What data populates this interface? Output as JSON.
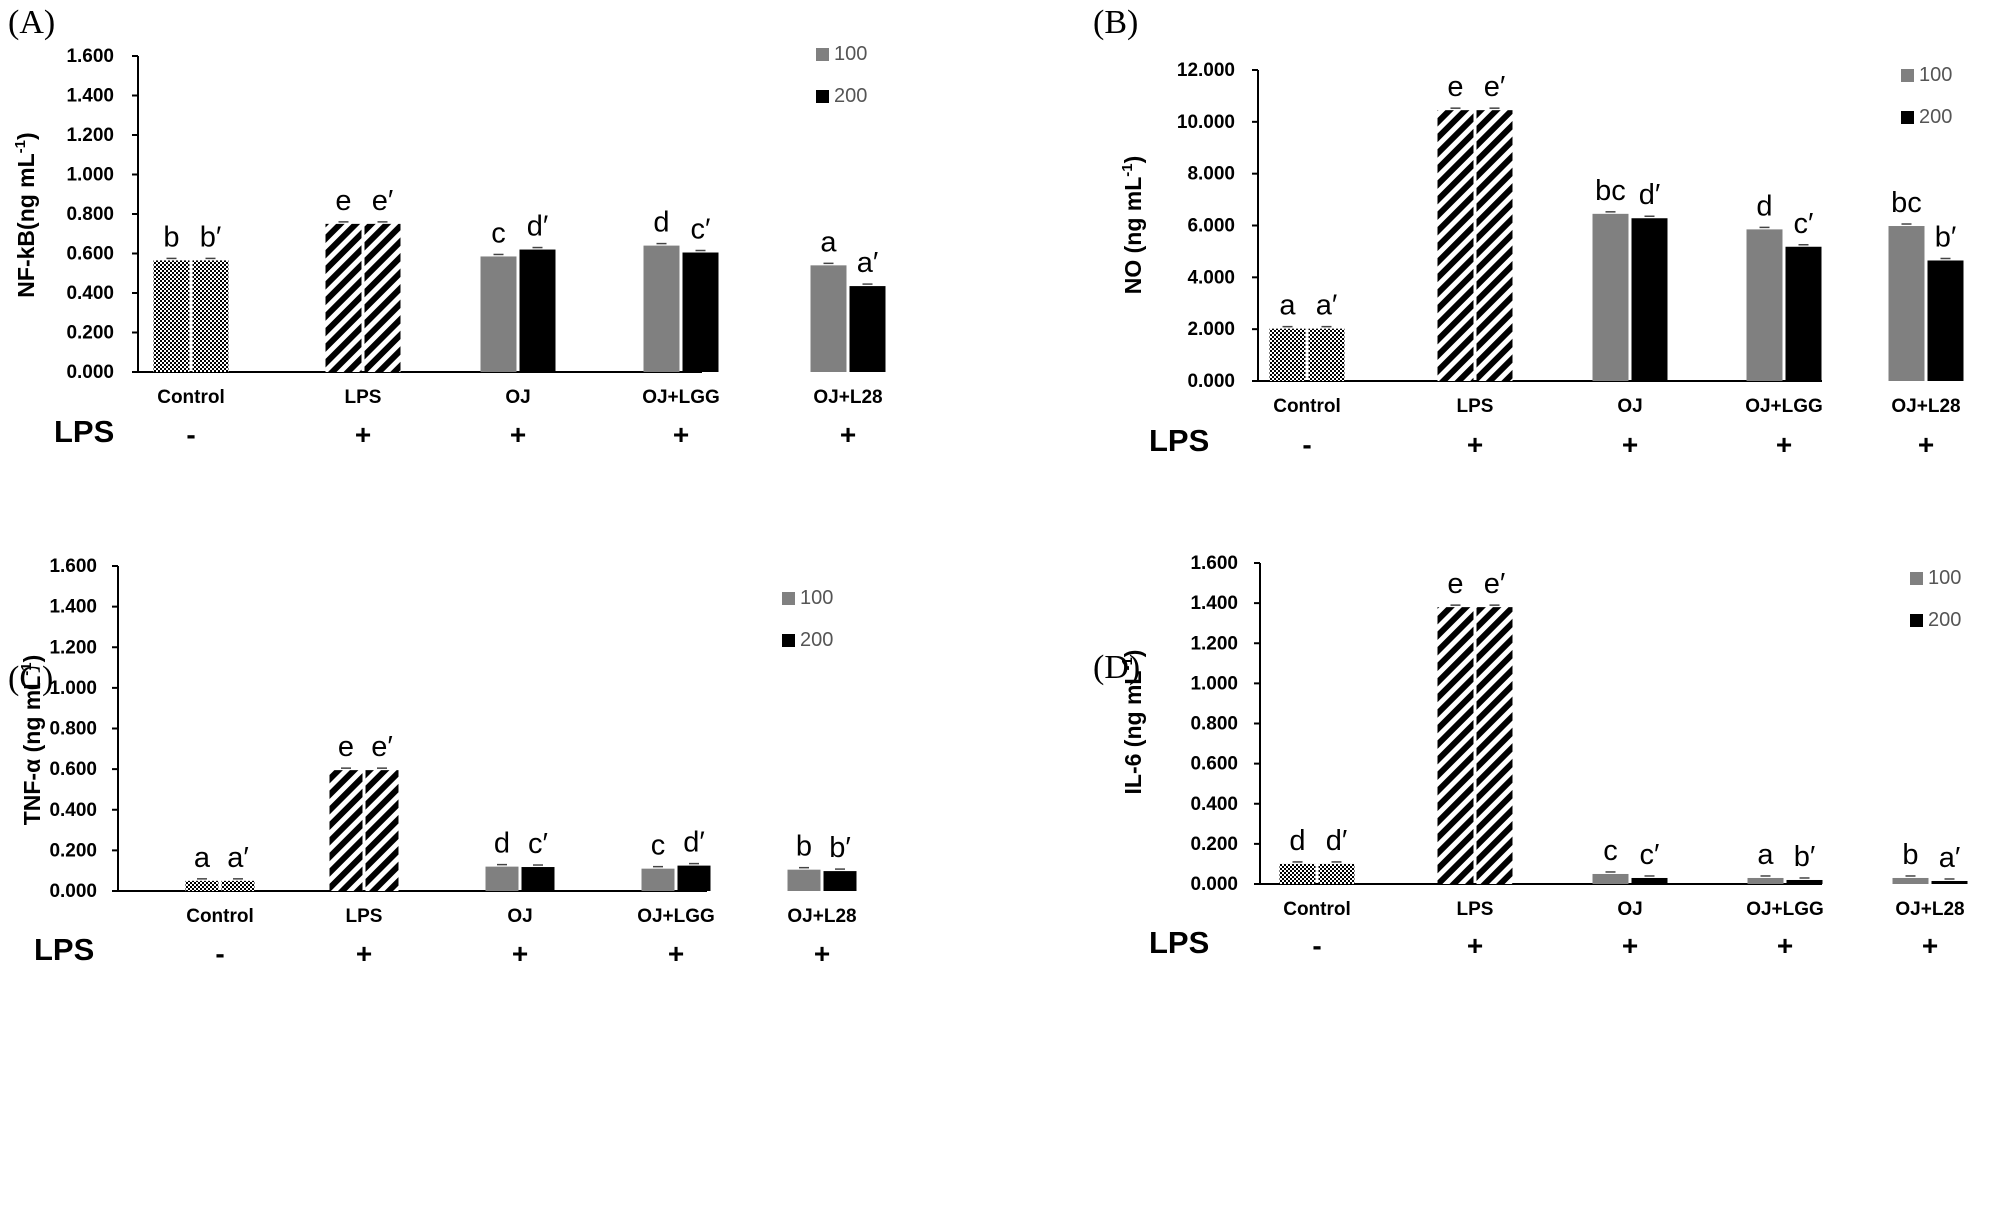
{
  "colors": {
    "s100": "#808080",
    "s200": "#000000",
    "axis": "#000000",
    "text": "#000000"
  },
  "legend": [
    "100",
    "200"
  ],
  "lps_row": {
    "label": "LPS",
    "signs": [
      "-",
      "+",
      "+",
      "+",
      "+"
    ]
  },
  "chart_data": [
    {
      "panel": "(A)",
      "type": "bar",
      "ylabel_main": "NF-kB(ng mL",
      "ylabel_sup": "-1",
      "ylabel_end": ")",
      "ylim": [
        0,
        1.6
      ],
      "yticks": [
        "0.000",
        "0.200",
        "0.400",
        "0.600",
        "0.800",
        "1.000",
        "1.200",
        "1.400",
        "1.600"
      ],
      "categories": [
        "Control",
        "LPS",
        "OJ",
        "OJ+LGG",
        "OJ+L28"
      ],
      "series": [
        {
          "name": "100",
          "values": [
            0.565,
            0.75,
            0.585,
            0.64,
            0.54
          ],
          "letters": [
            "b",
            "e",
            "c",
            "d",
            "a"
          ]
        },
        {
          "name": "200",
          "values": [
            0.565,
            0.75,
            0.62,
            0.605,
            0.435
          ],
          "letters": [
            "b′",
            "e′",
            "d′",
            "c′",
            "a′"
          ]
        }
      ]
    },
    {
      "panel": "(B)",
      "type": "bar",
      "ylabel_main": "NO (ng mL",
      "ylabel_sup": "-1",
      "ylabel_end": ")",
      "ylim": [
        0,
        12
      ],
      "yticks": [
        "0.000",
        "2.000",
        "4.000",
        "6.000",
        "8.000",
        "10.000",
        "12.000"
      ],
      "categories": [
        "Control",
        "LPS",
        "OJ",
        "OJ+LGG",
        "OJ+L28"
      ],
      "series": [
        {
          "name": "100",
          "values": [
            2.02,
            10.45,
            6.45,
            5.85,
            5.98
          ],
          "letters": [
            "a",
            "e",
            "bc",
            "d",
            "bc"
          ]
        },
        {
          "name": "200",
          "values": [
            2.02,
            10.45,
            6.28,
            5.18,
            4.65
          ],
          "letters": [
            "a′",
            "e′",
            "d′",
            "c′",
            "b′"
          ]
        }
      ]
    },
    {
      "panel": "(C)",
      "type": "bar",
      "ylabel_main": "TNF-α (ng mL",
      "ylabel_sup": "-1",
      "ylabel_end": ")",
      "ylim": [
        0,
        1.6
      ],
      "yticks": [
        "0.000",
        "0.200",
        "0.400",
        "0.600",
        "0.800",
        "1.000",
        "1.200",
        "1.400",
        "1.600"
      ],
      "categories": [
        "Control",
        "LPS",
        "OJ",
        "OJ+LGG",
        "OJ+L28"
      ],
      "series": [
        {
          "name": "100",
          "values": [
            0.05,
            0.595,
            0.12,
            0.11,
            0.105
          ],
          "letters": [
            "a",
            "e",
            "d",
            "c",
            "b"
          ]
        },
        {
          "name": "200",
          "values": [
            0.05,
            0.595,
            0.118,
            0.125,
            0.098
          ],
          "letters": [
            "a′",
            "e′",
            "c′",
            "d′",
            "b′"
          ]
        }
      ]
    },
    {
      "panel": "(D)",
      "type": "bar",
      "ylabel_main": "IL-6 (ng mL",
      "ylabel_sup": "-1",
      "ylabel_end": ")",
      "ylim": [
        0,
        1.6
      ],
      "yticks": [
        "0.000",
        "0.200",
        "0.400",
        "0.600",
        "0.800",
        "1.000",
        "1.200",
        "1.400",
        "1.600"
      ],
      "categories": [
        "Control",
        "LPS",
        "OJ",
        "OJ+LGG",
        "OJ+L28"
      ],
      "series": [
        {
          "name": "100",
          "values": [
            0.1,
            1.38,
            0.05,
            0.03,
            0.03
          ],
          "letters": [
            "d",
            "e",
            "c",
            "a",
            "b"
          ]
        },
        {
          "name": "200",
          "values": [
            0.1,
            1.38,
            0.03,
            0.02,
            0.015
          ],
          "letters": [
            "d′",
            "e′",
            "c′",
            "b′",
            "a′"
          ]
        }
      ]
    }
  ]
}
